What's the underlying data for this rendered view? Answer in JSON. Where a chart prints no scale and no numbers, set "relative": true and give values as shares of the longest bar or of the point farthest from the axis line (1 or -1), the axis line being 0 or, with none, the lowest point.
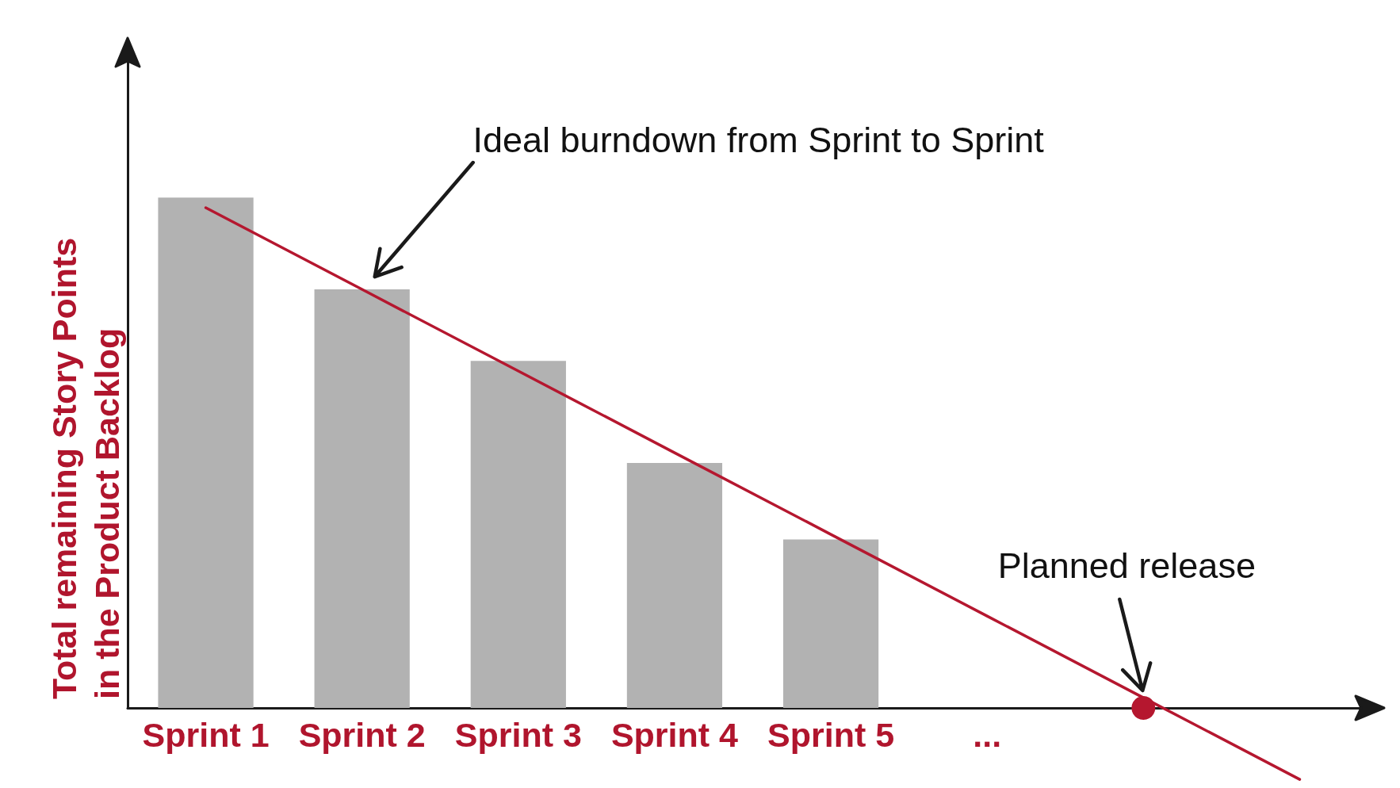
{
  "chart_data": {
    "type": "bar",
    "relative": true,
    "ylabel": "Total remaining Story Points in the Product Backlog",
    "categories": [
      "Sprint 1",
      "Sprint 2",
      "Sprint 3",
      "Sprint 4",
      "Sprint 5",
      "...",
      null,
      null
    ],
    "series": [
      {
        "color": "#b2b2b2",
        "values": [
          1,
          0.82,
          0.68,
          0.48,
          0.33,
          null,
          null,
          null
        ]
      },
      {
        "type": "line",
        "color": "#b5172f",
        "values": [
          0.98,
          0.82,
          0.66,
          0.5,
          0.34,
          0.18,
          0.02,
          -0.14
        ]
      },
      {
        "type": "scatter",
        "color": "#b5172f",
        "marker": "circle",
        "values": [
          null,
          null,
          null,
          null,
          null,
          null,
          0,
          null
        ]
      }
    ],
    "annotations": [
      "Ideal burndown from Sprint to Sprint",
      "Planned release"
    ]
  }
}
